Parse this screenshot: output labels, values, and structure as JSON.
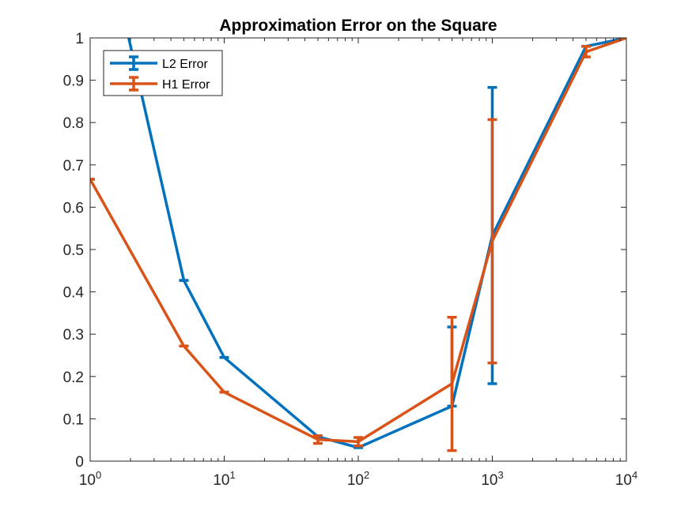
{
  "chart_data": {
    "type": "line",
    "title": "Approximation Error on the Square",
    "xlabel": "",
    "ylabel": "",
    "xscale": "log",
    "xlim": [
      1,
      10000
    ],
    "ylim": [
      0,
      1
    ],
    "xticks": [
      {
        "value": 1,
        "base": "10",
        "exp": "0"
      },
      {
        "value": 10,
        "base": "10",
        "exp": "1"
      },
      {
        "value": 100,
        "base": "10",
        "exp": "2"
      },
      {
        "value": 1000,
        "base": "10",
        "exp": "3"
      },
      {
        "value": 10000,
        "base": "10",
        "exp": "4"
      }
    ],
    "yticks": [
      {
        "value": 0,
        "label": "0"
      },
      {
        "value": 0.1,
        "label": "0.1"
      },
      {
        "value": 0.2,
        "label": "0.2"
      },
      {
        "value": 0.3,
        "label": "0.3"
      },
      {
        "value": 0.4,
        "label": "0.4"
      },
      {
        "value": 0.5,
        "label": "0.5"
      },
      {
        "value": 0.6,
        "label": "0.6"
      },
      {
        "value": 0.7,
        "label": "0.7"
      },
      {
        "value": 0.8,
        "label": "0.8"
      },
      {
        "value": 0.9,
        "label": "0.9"
      },
      {
        "value": 1,
        "label": "1"
      }
    ],
    "grid": false,
    "legend_position": "top-left",
    "series": [
      {
        "name": "L2 Error",
        "color": "#0072BD",
        "x": [
          1,
          5,
          10,
          50,
          100,
          500,
          1000,
          5000,
          10000
        ],
        "y": [
          1.4,
          0.427,
          0.245,
          0.058,
          0.032,
          0.13,
          0.533,
          0.98,
          1.0
        ],
        "err_low": [
          1.4,
          0.427,
          0.245,
          0.058,
          0.032,
          0.13,
          0.183,
          0.98,
          1.0
        ],
        "err_high": [
          1.4,
          0.427,
          0.245,
          0.058,
          0.032,
          0.317,
          0.883,
          0.98,
          1.0
        ]
      },
      {
        "name": "H1 Error",
        "color": "#D95319",
        "x": [
          1,
          5,
          10,
          50,
          100,
          500,
          1000,
          5000,
          10000
        ],
        "y": [
          0.666,
          0.272,
          0.163,
          0.051,
          0.046,
          0.183,
          0.52,
          0.967,
          1.0
        ],
        "err_low": [
          0.666,
          0.272,
          0.163,
          0.042,
          0.036,
          0.025,
          0.232,
          0.955,
          1.0
        ],
        "err_high": [
          0.666,
          0.272,
          0.163,
          0.06,
          0.056,
          0.34,
          0.807,
          0.98,
          1.0
        ]
      }
    ]
  }
}
